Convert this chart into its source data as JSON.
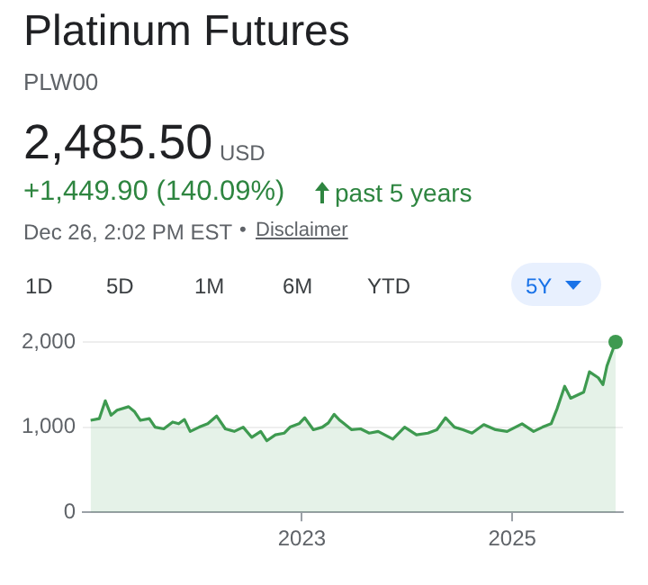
{
  "chart_data": {
    "type": "area",
    "title": "Platinum Futures",
    "subtitle": "PLW00",
    "annotations": [
      "2,485.50",
      "USD",
      "+1,449.90 (140.09%)",
      "past 5 years",
      "Dec 26, 2:02 PM EST",
      "•",
      "Disclaimer",
      "1D",
      "5D",
      "1M",
      "6M",
      "YTD",
      "5Y"
    ],
    "x": [
      "2020-12-28",
      "2021-01-27",
      "2021-02-17",
      "2021-03-09",
      "2021-03-30",
      "2021-05-09",
      "2021-05-30",
      "2021-06-19",
      "2021-07-20",
      "2021-08-09",
      "2021-09-08",
      "2021-10-09",
      "2021-10-30",
      "2021-11-19",
      "2021-12-09",
      "2022-01-09",
      "2022-02-08",
      "2022-03-11",
      "2022-04-10",
      "2022-05-11",
      "2022-06-11",
      "2022-07-11",
      "2022-08-11",
      "2022-09-01",
      "2022-10-01",
      "2022-11-01",
      "2022-11-21",
      "2022-12-22",
      "2023-01-11",
      "2023-02-10",
      "2023-03-13",
      "2023-04-03",
      "2023-04-23",
      "2023-05-13",
      "2023-05-24",
      "2023-06-23",
      "2023-07-24",
      "2023-08-23",
      "2023-09-23",
      "2023-11-13",
      "2023-12-24",
      "2024-02-03",
      "2024-03-14",
      "2024-04-14",
      "2024-05-14",
      "2024-06-14",
      "2024-07-14",
      "2024-08-14",
      "2024-09-24",
      "2024-11-04",
      "2024-12-14",
      "2025-02-04",
      "2025-03-16",
      "2025-04-16",
      "2025-05-16",
      "2025-06-06",
      "2025-07-02",
      "2025-07-23",
      "2025-09-06",
      "2025-09-26",
      "2025-10-27",
      "2025-11-12",
      "2025-11-26",
      "2025-12-26"
    ],
    "series": [
      {
        "color": "#3e9a50",
        "values": [
          1080,
          1100,
          1310,
          1140,
          1200,
          1240,
          1180,
          1080,
          1100,
          1000,
          980,
          1060,
          1040,
          1090,
          950,
          1000,
          1040,
          1130,
          980,
          950,
          1000,
          880,
          950,
          840,
          910,
          930,
          1000,
          1040,
          1110,
          970,
          1000,
          1050,
          1150,
          1080,
          1050,
          970,
          980,
          930,
          950,
          860,
          1000,
          910,
          930,
          970,
          1110,
          1000,
          970,
          930,
          1030,
          970,
          950,
          1040,
          950,
          1000,
          1040,
          1220,
          1480,
          1340,
          1410,
          1650,
          1580,
          1500,
          1720,
          2000
        ]
      }
    ],
    "xlim": [
      "2020-12-01",
      "2026-01-20"
    ],
    "xticks": [
      "2023",
      "2025"
    ],
    "ylim": [
      0,
      2000
    ],
    "yticks": [
      0,
      {
        "value": 1000,
        "label": "1,000"
      },
      {
        "value": 2000,
        "label": "2,000"
      }
    ],
    "grid": "y",
    "legend": false
  }
}
